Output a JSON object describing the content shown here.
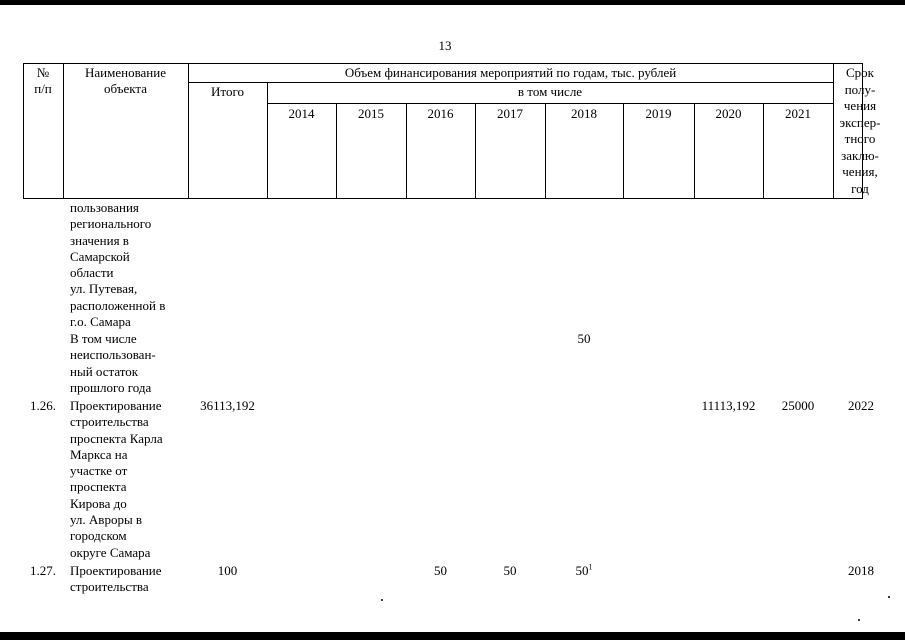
{
  "page_number": "13",
  "header": {
    "num_line1": "№",
    "num_line2": "п/п",
    "name_line1": "Наименование",
    "name_line2": "объекта",
    "volume_title": "Объем финансирования мероприятий по годам, тыс. рублей",
    "total": "Итого",
    "including": "в том числе",
    "years": [
      "2014",
      "2015",
      "2016",
      "2017",
      "2018",
      "2019",
      "2020",
      "2021"
    ],
    "deadline_lines": [
      "Срок",
      "полу-",
      "чения",
      "экспер-",
      "тного",
      "заклю-",
      "чения,",
      "год"
    ]
  },
  "continuation": {
    "lines": [
      "пользования",
      "регионального",
      "значения в",
      "Самарской",
      "области",
      "ул. Путевая,",
      "расположенной в",
      "г.о. Самара"
    ]
  },
  "sub_row": {
    "lines": [
      "В том числе",
      "неиспользован-",
      "ный остаток",
      "прошлого года"
    ],
    "y2018": "50"
  },
  "rows": [
    {
      "num": "1.26.",
      "name_lines": [
        "Проектирование",
        "строительства",
        "проспекта Карла",
        "Маркса на",
        "участке от",
        "проспекта",
        "Кирова до",
        "ул. Авроры в",
        "городском",
        "округе Самара"
      ],
      "total": "36113,192",
      "y2016": "",
      "y2017": "",
      "y2018": "",
      "y2020": "11113,192",
      "y2021": "25000",
      "deadline": "2022"
    },
    {
      "num": "1.27.",
      "name_lines": [
        "Проектирование",
        "строительства"
      ],
      "total": "100",
      "y2016": "50",
      "y2017": "50",
      "y2018": "50",
      "y2018_note": "1",
      "deadline": "2018"
    }
  ]
}
